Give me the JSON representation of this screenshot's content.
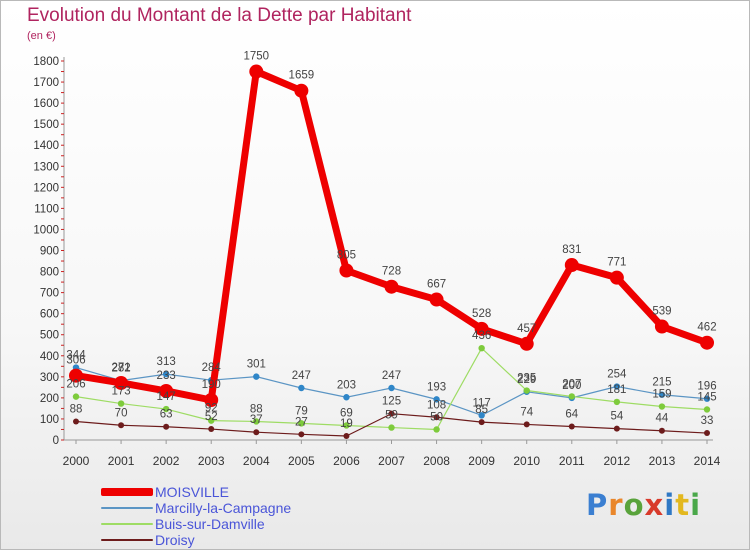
{
  "title": "Evolution du Montant de la Dette par Habitant",
  "subtitle": "(en €)",
  "logo": {
    "text": "Proxiti",
    "letter_colors": [
      "#3b7fd1",
      "#e9862a",
      "#59a33b",
      "#d83a2b",
      "#2f78c4",
      "#e3b81f",
      "#4aa84a"
    ]
  },
  "chart_data": {
    "type": "line",
    "title": "Evolution du Montant de la Dette par Habitant",
    "ylabel": "(en €)",
    "xlabel": "",
    "x": [
      "2000",
      "2001",
      "2002",
      "2003",
      "2004",
      "2005",
      "2006",
      "2007",
      "2008",
      "2009",
      "2010",
      "2011",
      "2012",
      "2013",
      "2014"
    ],
    "ylim": [
      0,
      1800
    ],
    "yticks": [
      0,
      100,
      200,
      300,
      400,
      500,
      600,
      700,
      800,
      900,
      1000,
      1100,
      1200,
      1300,
      1400,
      1500,
      1600,
      1700,
      1800
    ],
    "grid": false,
    "legend_position": "bottom-left",
    "series": [
      {
        "name": "Marcilly-la-Campagne",
        "color": "#5b95c4",
        "point_color": "#2f86c8",
        "width": 1.2,
        "radius": 3.2,
        "values": [
          344,
          282,
          313,
          284,
          301,
          247,
          203,
          247,
          193,
          117,
          229,
          200,
          254,
          215,
          196
        ]
      },
      {
        "name": "Buis-sur-Damville",
        "color": "#9edc64",
        "point_color": "#7ecb3c",
        "width": 1.2,
        "radius": 3.2,
        "values": [
          206,
          173,
          147,
          92,
          88,
          79,
          69,
          59,
          50,
          436,
          235,
          207,
          181,
          159,
          145
        ]
      },
      {
        "name": "Droisy",
        "color": "#6d1c1c",
        "point_color": "#6d1c1c",
        "width": 1.2,
        "radius": 3,
        "values": [
          88,
          70,
          63,
          52,
          37,
          27,
          19,
          125,
          108,
          85,
          74,
          64,
          54,
          44,
          33
        ]
      },
      {
        "name": "MOISVILLE",
        "color": "#ee0000",
        "point_color": "#ee0000",
        "width": 7,
        "radius": 7,
        "values": [
          306,
          271,
          233,
          190,
          1750,
          1659,
          805,
          728,
          667,
          528,
          457,
          831,
          771,
          539,
          462
        ]
      }
    ],
    "legend_order": [
      "MOISVILLE",
      "Marcilly-la-Campagne",
      "Buis-sur-Damville",
      "Droisy"
    ]
  }
}
